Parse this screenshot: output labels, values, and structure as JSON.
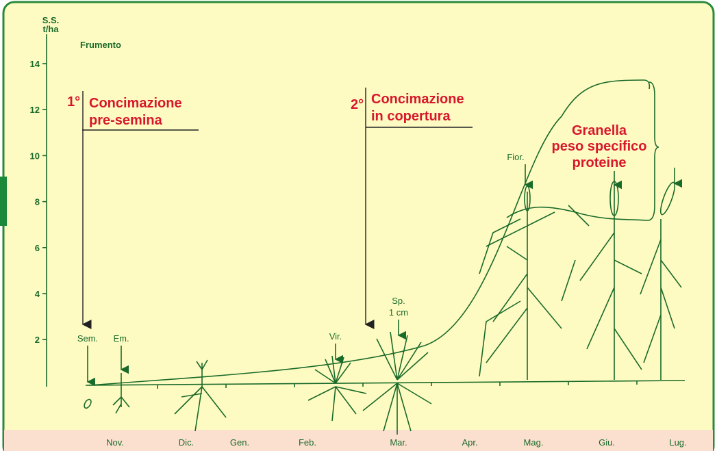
{
  "y_axis": {
    "label": [
      "S.S.",
      "t/ha"
    ],
    "ticks": [
      14,
      12,
      10,
      8,
      6,
      4,
      2
    ]
  },
  "crop": "Frumento",
  "fertilization": [
    {
      "number": "1°",
      "lines": [
        "Concimazione",
        "pre-semina"
      ]
    },
    {
      "number": "2°",
      "lines": [
        "Concimazione",
        "in copertura"
      ]
    }
  ],
  "stages": [
    "Sem.",
    "Em.",
    "Vir.",
    "Sp.",
    "1 cm",
    "Fior."
  ],
  "harvest": [
    "Granella",
    "peso specifico",
    "proteine"
  ],
  "months": [
    "Nov.",
    "Dic.",
    "Gen.",
    "Feb.",
    "Mar.",
    "Apr.",
    "Mag.",
    "Giu.",
    "Lug."
  ]
}
